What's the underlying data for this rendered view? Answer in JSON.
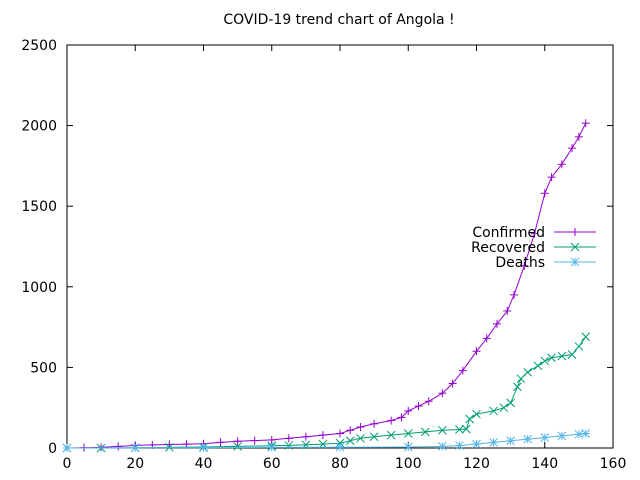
{
  "chart_data": {
    "type": "line",
    "title": "COVID-19 trend chart of Angola !",
    "xlabel": "",
    "ylabel": "",
    "xlim": [
      0,
      160
    ],
    "ylim": [
      0,
      2500
    ],
    "xticks": [
      0,
      20,
      40,
      60,
      80,
      100,
      120,
      140,
      160
    ],
    "yticks": [
      0,
      500,
      1000,
      1500,
      2000,
      2500
    ],
    "grid": false,
    "legend_position": "right",
    "series": [
      {
        "name": "Confirmed",
        "color": "#9400d3",
        "marker": "plus",
        "x": [
          0,
          5,
          10,
          15,
          20,
          25,
          30,
          35,
          40,
          45,
          50,
          55,
          60,
          65,
          70,
          75,
          80,
          83,
          86,
          90,
          95,
          98,
          100,
          103,
          106,
          110,
          113,
          116,
          120,
          123,
          126,
          129,
          131,
          134,
          137,
          140,
          142,
          145,
          148,
          150,
          152
        ],
        "values": [
          0,
          2,
          4,
          10,
          16,
          19,
          22,
          24,
          26,
          35,
          42,
          46,
          50,
          60,
          70,
          80,
          90,
          110,
          130,
          150,
          170,
          190,
          230,
          260,
          290,
          340,
          400,
          480,
          600,
          680,
          770,
          850,
          950,
          1130,
          1330,
          1580,
          1680,
          1760,
          1860,
          1930,
          2015
        ]
      },
      {
        "name": "Recovered",
        "color": "#009e73",
        "marker": "cross",
        "x": [
          0,
          10,
          20,
          30,
          40,
          50,
          60,
          65,
          70,
          75,
          80,
          83,
          86,
          90,
          95,
          100,
          105,
          110,
          115,
          117,
          118,
          120,
          125,
          128,
          130,
          132,
          133,
          135,
          138,
          140,
          142,
          145,
          148,
          150,
          152
        ],
        "values": [
          0,
          0,
          2,
          4,
          6,
          10,
          14,
          16,
          20,
          24,
          30,
          45,
          60,
          70,
          80,
          90,
          100,
          110,
          115,
          118,
          180,
          210,
          230,
          250,
          280,
          380,
          430,
          470,
          510,
          540,
          560,
          570,
          580,
          630,
          690
        ]
      },
      {
        "name": "Deaths",
        "color": "#56b4e9",
        "marker": "star",
        "x": [
          0,
          20,
          40,
          60,
          80,
          100,
          110,
          115,
          120,
          125,
          130,
          135,
          140,
          145,
          150,
          152
        ],
        "values": [
          0,
          1,
          2,
          4,
          5,
          6,
          10,
          15,
          25,
          35,
          45,
          55,
          65,
          75,
          85,
          90
        ]
      }
    ]
  }
}
